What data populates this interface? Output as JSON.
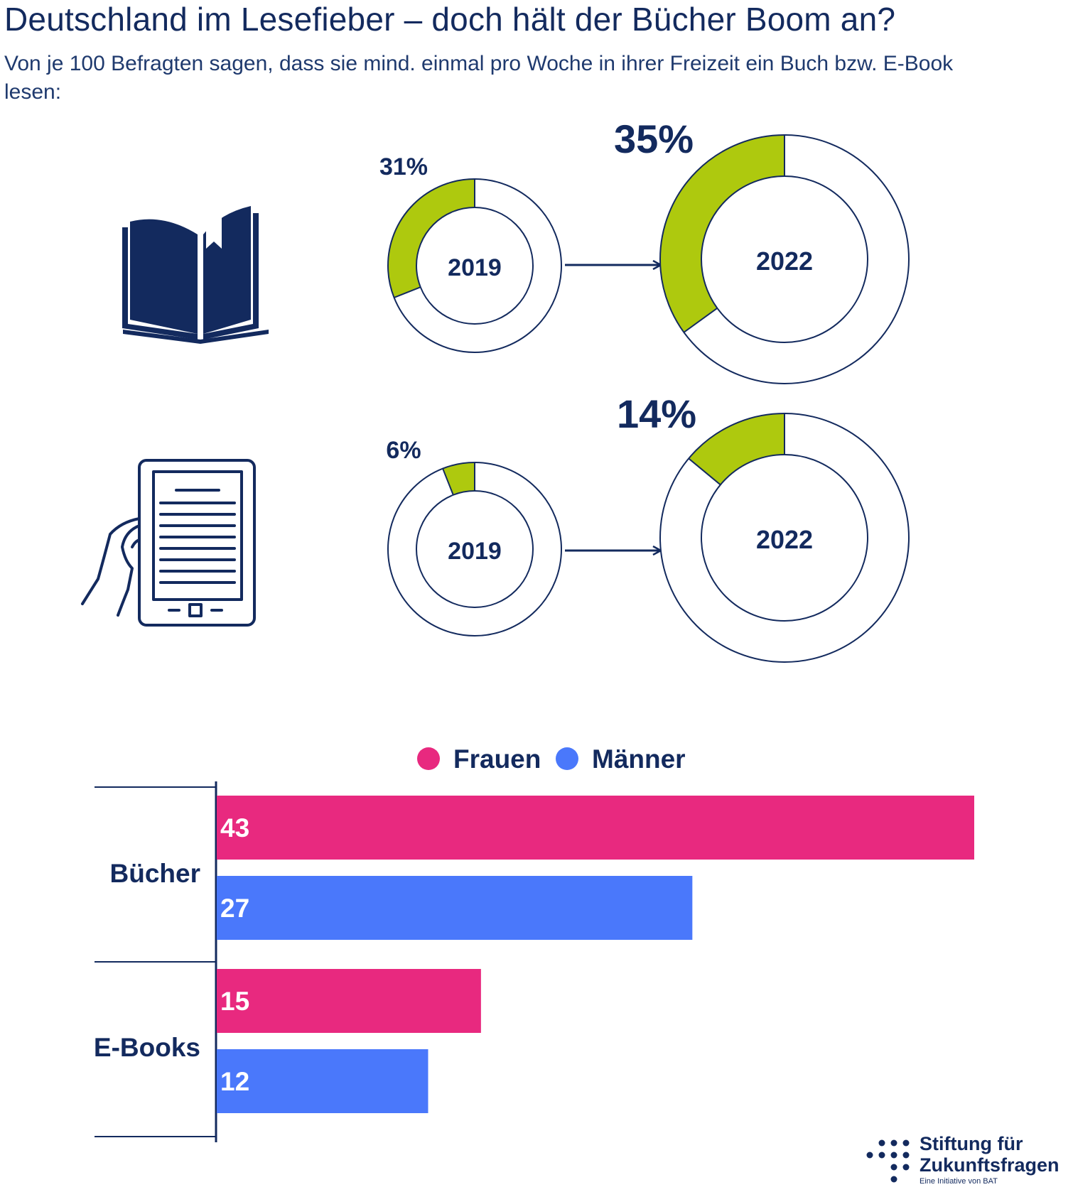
{
  "title": "Deutschland im Lesefieber – doch hält der Bücher Boom an?",
  "subtitle": "Von je 100 Befragten sagen, dass sie mind. einmal pro Woche in ihrer Freizeit ein Buch bzw. E-Book lesen:",
  "colors": {
    "navy": "#132a5e",
    "green": "#aec90e",
    "pink": "#e8297f",
    "blue": "#4a78fb"
  },
  "icons": [
    "open-book-icon",
    "ebook-reader-icon",
    "arrow-right-icon"
  ],
  "chart_data": [
    {
      "type": "pie",
      "variant": "donut",
      "group": "Buch",
      "icon": "open-book-icon",
      "points": [
        {
          "year": "2019",
          "value": 31,
          "label": "31%"
        },
        {
          "year": "2022",
          "value": 35,
          "label": "35%"
        }
      ]
    },
    {
      "type": "pie",
      "variant": "donut",
      "group": "E-Book",
      "icon": "ebook-reader-icon",
      "points": [
        {
          "year": "2019",
          "value": 6,
          "label": "6%"
        },
        {
          "year": "2022",
          "value": 14,
          "label": "14%"
        }
      ]
    },
    {
      "type": "bar",
      "orientation": "horizontal",
      "categories": [
        "Bücher",
        "E-Books"
      ],
      "series": [
        {
          "name": "Frauen",
          "color": "#e8297f",
          "values": [
            43,
            15
          ]
        },
        {
          "name": "Männer",
          "color": "#4a78fb",
          "values": [
            27,
            12
          ]
        }
      ],
      "xlim": [
        0,
        43
      ],
      "legend_position": "top-center",
      "grid": false
    }
  ],
  "logo": {
    "line1": "Stiftung für",
    "line2": "Zukunftsfragen",
    "tagline": "Eine Initiative von BAT"
  }
}
